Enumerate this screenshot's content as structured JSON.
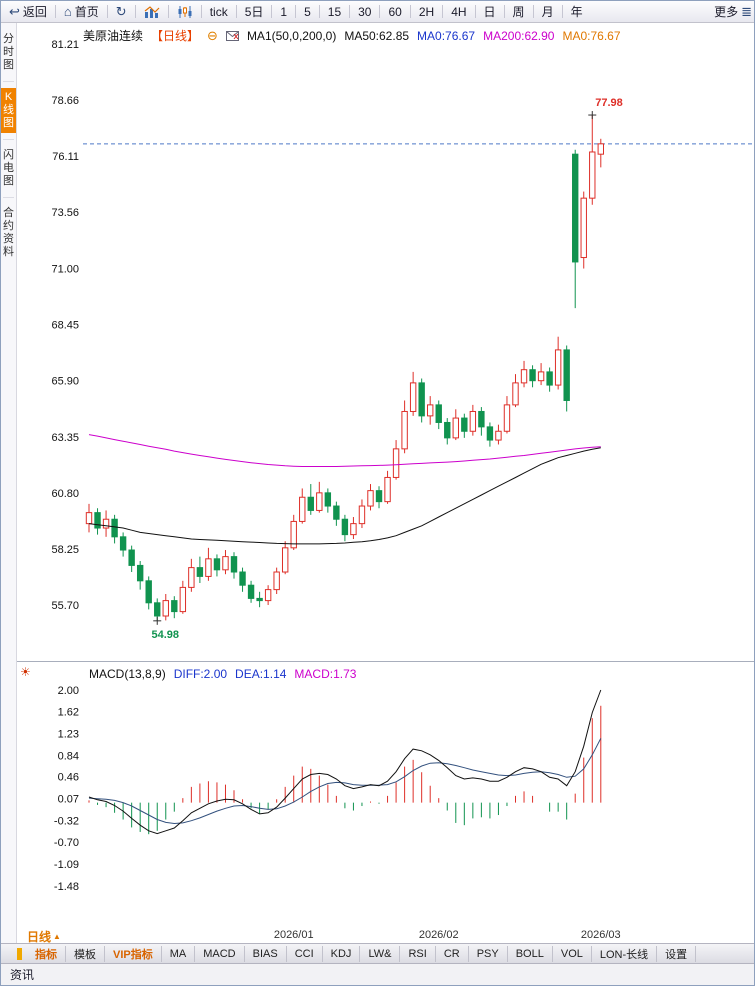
{
  "toolbar": {
    "back": "返回",
    "home": "首页",
    "periods": [
      "tick",
      "5日",
      "1",
      "5",
      "15",
      "30",
      "60",
      "2H",
      "4H",
      "日",
      "周",
      "月",
      "年"
    ],
    "more": "更多"
  },
  "sidebar": {
    "items": [
      {
        "label": "分时图",
        "active": false
      },
      {
        "label": "K线图",
        "active": true
      },
      {
        "label": "闪电图",
        "active": false
      },
      {
        "label": "合约资料",
        "active": false
      }
    ]
  },
  "kline": {
    "title": "美原油连续",
    "period_tag": "【日线】",
    "legend": {
      "ma_def": "MA1(50,0,200,0)",
      "ma50": "MA50:62.85",
      "ma0_blue": "MA0:76.67",
      "ma200": "MA200:62.90",
      "ma0_orange": "MA0:76.67"
    }
  },
  "macd_panel": {
    "legend": {
      "def": "MACD(13,8,9)",
      "diff": "DIFF:2.00",
      "dea": "DEA:1.14",
      "macd": "MACD:1.73"
    }
  },
  "xaxis": {
    "period_label": "日线"
  },
  "tabs": [
    {
      "label": "指标",
      "highlight": true
    },
    {
      "label": "模板",
      "highlight": false
    },
    {
      "label": "VIP指标",
      "highlight": true
    },
    {
      "label": "MA",
      "highlight": false
    },
    {
      "label": "MACD",
      "highlight": false
    },
    {
      "label": "BIAS",
      "highlight": false
    },
    {
      "label": "CCI",
      "highlight": false
    },
    {
      "label": "KDJ",
      "highlight": false
    },
    {
      "label": "LW&",
      "highlight": false
    },
    {
      "label": "RSI",
      "highlight": false
    },
    {
      "label": "CR",
      "highlight": false
    },
    {
      "label": "PSY",
      "highlight": false
    },
    {
      "label": "BOLL",
      "highlight": false
    },
    {
      "label": "VOL",
      "highlight": false
    },
    {
      "label": "LON-长线",
      "highlight": false
    },
    {
      "label": "设置",
      "highlight": false
    }
  ],
  "status": {
    "left": "资讯"
  },
  "colors": {
    "up": "#de2f28",
    "down": "#10934f",
    "ma50": "#111111",
    "ma200": "#cc00cc",
    "diff": "#111111",
    "dea": "#33517e",
    "price_line": "#4d79c7"
  },
  "chart_data": {
    "type": "candlestick",
    "title": "美原油连续 日线",
    "y_axis_labels": [
      "81.21",
      "78.66",
      "76.11",
      "73.56",
      "71.00",
      "68.45",
      "65.90",
      "63.35",
      "60.80",
      "58.25",
      "55.70"
    ],
    "candles": [
      [
        59.4,
        60.3,
        59.0,
        59.9
      ],
      [
        59.9,
        60.1,
        58.9,
        59.2
      ],
      [
        59.2,
        60.0,
        58.8,
        59.6
      ],
      [
        59.6,
        59.8,
        58.5,
        58.8
      ],
      [
        58.8,
        59.0,
        57.9,
        58.2
      ],
      [
        58.2,
        58.4,
        57.2,
        57.5
      ],
      [
        57.5,
        57.7,
        56.4,
        56.8
      ],
      [
        56.8,
        57.0,
        55.5,
        55.8
      ],
      [
        55.8,
        56.0,
        54.98,
        55.2
      ],
      [
        55.2,
        56.2,
        55.0,
        55.9
      ],
      [
        55.9,
        56.1,
        55.1,
        55.4
      ],
      [
        55.4,
        56.8,
        55.3,
        56.5
      ],
      [
        56.5,
        57.8,
        56.3,
        57.4
      ],
      [
        57.4,
        57.9,
        56.7,
        57.0
      ],
      [
        57.0,
        58.3,
        56.8,
        57.8
      ],
      [
        57.8,
        58.0,
        57.0,
        57.3
      ],
      [
        57.3,
        58.2,
        57.1,
        57.9
      ],
      [
        57.9,
        58.1,
        56.9,
        57.2
      ],
      [
        57.2,
        57.4,
        56.3,
        56.6
      ],
      [
        56.6,
        56.8,
        55.8,
        56.0
      ],
      [
        56.0,
        56.3,
        55.6,
        55.9
      ],
      [
        55.9,
        56.6,
        55.7,
        56.4
      ],
      [
        56.4,
        57.4,
        56.2,
        57.2
      ],
      [
        57.2,
        58.6,
        57.1,
        58.3
      ],
      [
        58.3,
        59.8,
        58.2,
        59.5
      ],
      [
        59.5,
        61.0,
        59.4,
        60.6
      ],
      [
        60.6,
        61.2,
        59.8,
        60.0
      ],
      [
        60.0,
        61.3,
        59.9,
        60.8
      ],
      [
        60.8,
        61.0,
        59.9,
        60.2
      ],
      [
        60.2,
        60.4,
        59.3,
        59.6
      ],
      [
        59.6,
        59.8,
        58.6,
        58.9
      ],
      [
        58.9,
        59.7,
        58.7,
        59.4
      ],
      [
        59.4,
        60.5,
        59.2,
        60.2
      ],
      [
        60.2,
        61.2,
        60.0,
        60.9
      ],
      [
        60.9,
        61.1,
        60.1,
        60.4
      ],
      [
        60.4,
        61.8,
        60.3,
        61.5
      ],
      [
        61.5,
        63.2,
        61.4,
        62.8
      ],
      [
        62.8,
        65.0,
        62.6,
        64.5
      ],
      [
        64.5,
        66.3,
        64.3,
        65.8
      ],
      [
        65.8,
        66.0,
        64.0,
        64.3
      ],
      [
        64.3,
        65.2,
        63.9,
        64.8
      ],
      [
        64.8,
        65.0,
        63.7,
        64.0
      ],
      [
        64.0,
        64.2,
        63.0,
        63.3
      ],
      [
        63.3,
        64.6,
        63.2,
        64.2
      ],
      [
        64.2,
        64.4,
        63.3,
        63.6
      ],
      [
        63.6,
        64.8,
        63.4,
        64.5
      ],
      [
        64.5,
        64.7,
        63.4,
        63.8
      ],
      [
        63.8,
        64.0,
        62.9,
        63.2
      ],
      [
        63.2,
        63.9,
        63.0,
        63.6
      ],
      [
        63.6,
        65.2,
        63.5,
        64.8
      ],
      [
        64.8,
        66.2,
        64.7,
        65.8
      ],
      [
        65.8,
        66.8,
        65.6,
        66.4
      ],
      [
        66.4,
        66.6,
        65.6,
        65.9
      ],
      [
        65.9,
        66.7,
        65.7,
        66.3
      ],
      [
        66.3,
        66.5,
        65.4,
        65.7
      ],
      [
        65.7,
        67.9,
        65.5,
        67.3
      ],
      [
        67.3,
        67.5,
        64.5,
        65.0
      ],
      [
        76.2,
        76.4,
        69.2,
        71.3
      ],
      [
        71.5,
        74.5,
        71.0,
        74.2
      ],
      [
        74.2,
        77.98,
        73.9,
        76.3
      ],
      [
        76.2,
        76.9,
        75.6,
        76.67
      ]
    ],
    "ma50": [
      59.4,
      59.35,
      59.3,
      59.25,
      59.2,
      59.1,
      59.0,
      58.95,
      58.9,
      58.85,
      58.8,
      58.75,
      58.7,
      58.68,
      58.66,
      58.64,
      58.62,
      58.6,
      58.58,
      58.56,
      58.54,
      58.52,
      58.5,
      58.49,
      58.48,
      58.48,
      58.48,
      58.48,
      58.49,
      58.5,
      58.52,
      58.55,
      58.58,
      58.62,
      58.68,
      58.75,
      58.85,
      59.0,
      59.15,
      59.3,
      59.5,
      59.7,
      59.9,
      60.1,
      60.3,
      60.5,
      60.7,
      60.9,
      61.1,
      61.3,
      61.5,
      61.7,
      61.9,
      62.1,
      62.25,
      62.4,
      62.5,
      62.6,
      62.7,
      62.78,
      62.85
    ],
    "ma200": [
      63.45,
      63.38,
      63.3,
      63.22,
      63.15,
      63.07,
      63.0,
      62.92,
      62.85,
      62.78,
      62.7,
      62.63,
      62.56,
      62.5,
      62.44,
      62.38,
      62.32,
      62.27,
      62.22,
      62.17,
      62.13,
      62.09,
      62.06,
      62.03,
      62.01,
      62.0,
      62.0,
      62.0,
      62.0,
      62.0,
      62.01,
      62.02,
      62.03,
      62.04,
      62.05,
      62.06,
      62.08,
      62.1,
      62.12,
      62.14,
      62.16,
      62.18,
      62.2,
      62.22,
      62.25,
      62.28,
      62.31,
      62.34,
      62.38,
      62.42,
      62.46,
      62.5,
      62.55,
      62.6,
      62.65,
      62.7,
      62.75,
      62.8,
      62.84,
      62.87,
      62.9
    ],
    "x_ticks": [
      {
        "label": "2026/01",
        "index": 24
      },
      {
        "label": "2026/02",
        "index": 41
      },
      {
        "label": "2026/03",
        "index": 60
      }
    ],
    "annotations": {
      "high": {
        "index": 59,
        "price": 77.98,
        "text": "77.98"
      },
      "low": {
        "index": 8,
        "price": 54.98,
        "text": "54.98"
      },
      "last_price": 76.67
    },
    "macd": {
      "params": "13,8,9",
      "y_axis_labels": [
        "2.00",
        "1.62",
        "1.23",
        "0.84",
        "0.46",
        "0.07",
        "-0.32",
        "-0.70",
        "-1.09",
        "-1.48"
      ],
      "diff": [
        0.1,
        0.05,
        0.02,
        -0.05,
        -0.15,
        -0.28,
        -0.4,
        -0.5,
        -0.55,
        -0.5,
        -0.45,
        -0.32,
        -0.18,
        -0.1,
        -0.02,
        0.03,
        0.06,
        0.05,
        -0.02,
        -0.12,
        -0.2,
        -0.18,
        -0.08,
        0.08,
        0.25,
        0.42,
        0.5,
        0.52,
        0.5,
        0.42,
        0.3,
        0.25,
        0.28,
        0.32,
        0.3,
        0.38,
        0.55,
        0.78,
        0.95,
        0.92,
        0.85,
        0.75,
        0.62,
        0.48,
        0.42,
        0.44,
        0.42,
        0.38,
        0.38,
        0.45,
        0.55,
        0.62,
        0.6,
        0.55,
        0.45,
        0.42,
        0.3,
        0.55,
        1.0,
        1.6,
        2.0
      ],
      "dea": [
        0.08,
        0.07,
        0.06,
        0.04,
        0.0,
        -0.06,
        -0.14,
        -0.22,
        -0.3,
        -0.35,
        -0.37,
        -0.36,
        -0.32,
        -0.27,
        -0.21,
        -0.15,
        -0.1,
        -0.06,
        -0.05,
        -0.07,
        -0.1,
        -0.12,
        -0.11,
        -0.06,
        0.01,
        0.1,
        0.2,
        0.28,
        0.34,
        0.36,
        0.35,
        0.32,
        0.31,
        0.31,
        0.31,
        0.32,
        0.37,
        0.46,
        0.57,
        0.65,
        0.7,
        0.71,
        0.69,
        0.66,
        0.62,
        0.58,
        0.55,
        0.52,
        0.49,
        0.48,
        0.49,
        0.52,
        0.54,
        0.55,
        0.53,
        0.5,
        0.45,
        0.47,
        0.6,
        0.85,
        1.14
      ],
      "hist_formula": "2*(diff-dea)"
    }
  }
}
